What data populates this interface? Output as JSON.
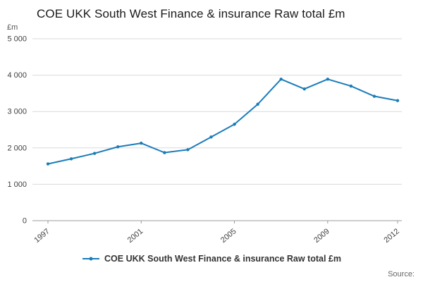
{
  "title": "COE UKK South West Finance & insurance Raw total £m",
  "y_unit_label": "£m",
  "legend": {
    "label": "COE UKK South West Finance & insurance Raw total £m"
  },
  "source": {
    "label": "Source:"
  },
  "colors": {
    "line": "#1b7cba",
    "grid": "#d9d9d9",
    "axis": "#9b9b9b",
    "tick_text": "#404040",
    "title_text": "#1a1a1a",
    "muted_text": "#666666"
  },
  "chart_data": {
    "type": "line",
    "title": "COE UKK South West Finance & insurance Raw total £m",
    "xlabel": "",
    "ylabel": "£m",
    "x": [
      1997,
      1998,
      1999,
      2000,
      2001,
      2002,
      2003,
      2004,
      2005,
      2006,
      2007,
      2008,
      2009,
      2010,
      2011,
      2012
    ],
    "series": [
      {
        "name": "COE UKK South West Finance & insurance Raw total £m",
        "values": [
          1560,
          1700,
          1850,
          2030,
          2130,
          1870,
          1950,
          2300,
          2650,
          3200,
          3890,
          3620,
          3890,
          3700,
          3420,
          3300
        ]
      }
    ],
    "ylim": [
      0,
      5000
    ],
    "yticks": [
      0,
      1000,
      2000,
      3000,
      4000,
      5000
    ],
    "ytick_labels": [
      "0",
      "1 000",
      "2 000",
      "3 000",
      "4 000",
      "5 000"
    ],
    "xticks": [
      1997,
      2001,
      2005,
      2009,
      2012
    ],
    "xtick_labels": [
      "1997",
      "2001",
      "2005",
      "2009",
      "2012"
    ],
    "grid": true,
    "legend_position": "bottom",
    "marker": "circle"
  }
}
